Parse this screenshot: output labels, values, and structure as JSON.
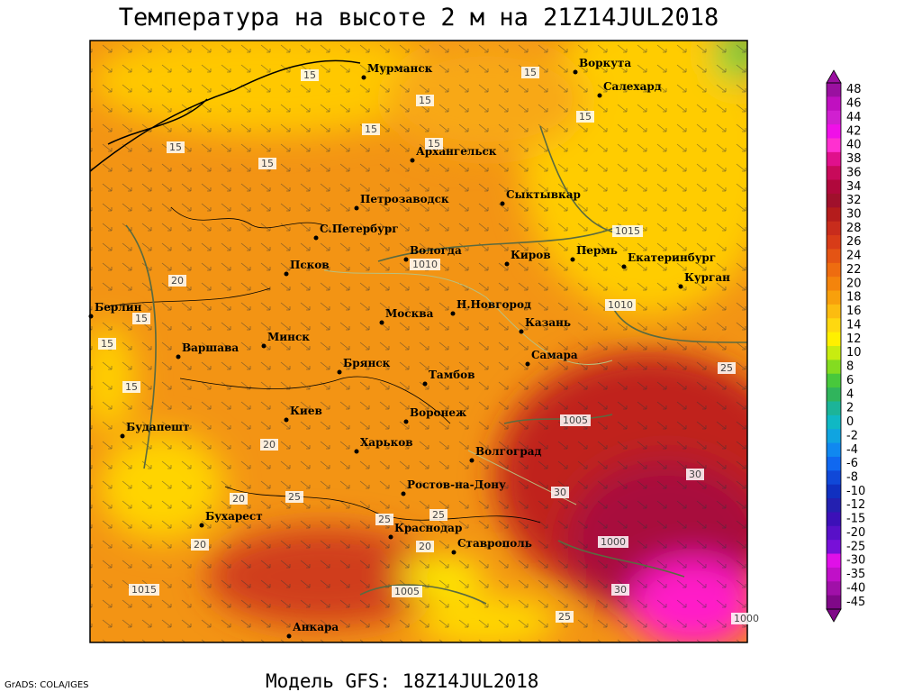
{
  "title": "Температура на высоте 2 м на 21Z14JUL2018",
  "subtitle": "Модель GFS: 18Z14JUL2018",
  "credit": "GrADS: COLA/IGES",
  "cities": [
    "Мурманск",
    "Воркута",
    "Салехард",
    "Архангельск",
    "Петрозаводск",
    "Сыктывкар",
    "С.Петербург",
    "Вологда",
    "Киров",
    "Пермь",
    "Екатеринбург",
    "Курган",
    "Псков",
    "Берлин",
    "Москва",
    "Н.Новгород",
    "Казань",
    "Минск",
    "Варшава",
    "Брянск",
    "Самара",
    "Тамбов",
    "Киев",
    "Воронеж",
    "Будапешт",
    "Харьков",
    "Волгоград",
    "Ростов-на-Дону",
    "Бухарест",
    "Краснодар",
    "Ставрополь",
    "Анкара"
  ],
  "contour_labels": [
    "15",
    "15",
    "15",
    "15",
    "15",
    "15",
    "15",
    "15",
    "20",
    "15",
    "15",
    "15",
    "20",
    "20",
    "25",
    "20",
    "25",
    "20",
    "25",
    "25",
    "30",
    "30",
    "25",
    "30",
    "1010",
    "1015",
    "1010",
    "1015",
    "1005",
    "1000",
    "1005",
    "1000"
  ],
  "colorbar": {
    "labels": [
      48,
      46,
      44,
      42,
      40,
      38,
      36,
      34,
      32,
      30,
      28,
      26,
      24,
      22,
      20,
      18,
      16,
      14,
      12,
      10,
      8,
      6,
      4,
      2,
      0,
      -2,
      -4,
      -6,
      -8,
      -10,
      -12,
      -15,
      -20,
      -25,
      -30,
      -35,
      -40,
      -45
    ],
    "colors": [
      "#9a10a0",
      "#c010c0",
      "#d020d0",
      "#f010e8",
      "#ff30d0",
      "#e0108c",
      "#c80a5a",
      "#b0083c",
      "#a0102c",
      "#b41c1c",
      "#c82c1c",
      "#d83c18",
      "#e45414",
      "#ee6c10",
      "#f4840c",
      "#f8a00c",
      "#fcbc10",
      "#fed810",
      "#fff000",
      "#c8ec10",
      "#84dc20",
      "#48c83c",
      "#30b45c",
      "#1cb498",
      "#10b8c4",
      "#10a4e0",
      "#1088f0",
      "#1068f0",
      "#1048d8",
      "#1030c0",
      "#2420b0",
      "#3c10b8",
      "#5810c8",
      "#7810d8",
      "#e010e8",
      "#c010c8",
      "#a010a8",
      "#800888"
    ]
  }
}
